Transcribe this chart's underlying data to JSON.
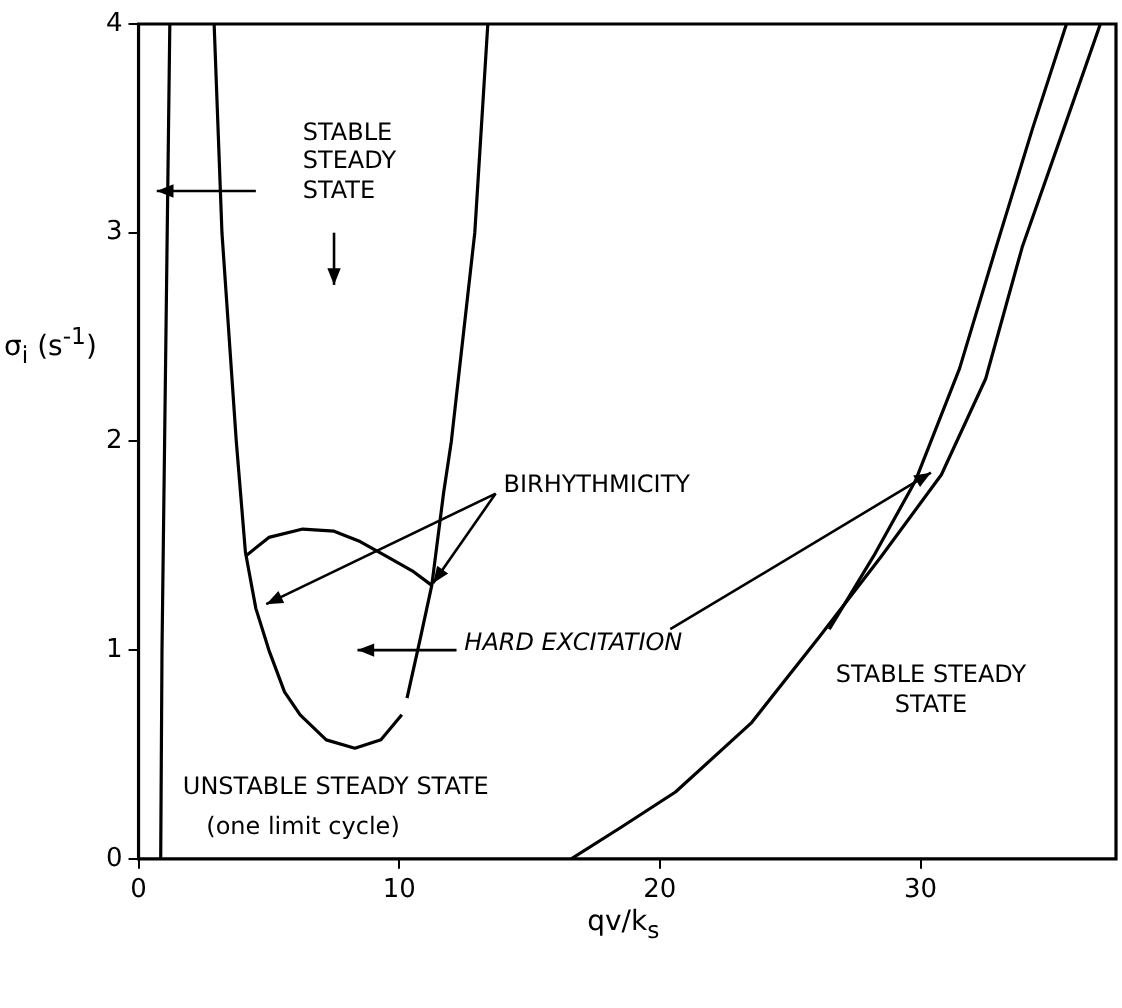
{
  "chart_data": {
    "type": "line",
    "xlabel": "qv/k$_{s}$",
    "ylabel": "σ$_{i}$ (s$^{-1}$)",
    "xlim": [
      0,
      37.5
    ],
    "ylim": [
      0,
      4
    ],
    "xticks": [
      0,
      10,
      20,
      30
    ],
    "yticks": [
      0,
      1,
      2,
      3,
      4
    ],
    "grid": false,
    "legend": false,
    "marker": "none",
    "line_style": "solid",
    "series": [
      {
        "color": "#000000",
        "x": [
          0.85,
          0.9,
          1.0,
          1.1,
          1.2
        ],
        "values": [
          0,
          1,
          2,
          3,
          4
        ]
      },
      {
        "color": "#000000",
        "x": [
          2.9,
          3.2,
          3.75,
          4.1,
          4.5,
          5.0,
          5.6,
          6.2,
          7.2,
          8.3,
          9.3,
          10.1,
          10.2,
          10.3,
          10.8,
          11.25,
          11.7,
          12.0,
          12.9,
          13.4
        ],
        "values": [
          4,
          3,
          2,
          1.47,
          1.2,
          1.0,
          0.8,
          0.69,
          0.57,
          0.53,
          0.57,
          0.69,
          null,
          0.77,
          1.05,
          1.31,
          1.75,
          2,
          3,
          4
        ]
      },
      {
        "color": "#000000",
        "x": [
          4.1,
          5.0,
          6.3,
          7.5,
          8.5,
          9.5,
          10.5,
          11.25
        ],
        "values": [
          1.45,
          1.54,
          1.58,
          1.57,
          1.52,
          1.45,
          1.38,
          1.31
        ]
      },
      {
        "color": "#000000",
        "x": [
          16.6,
          18.5,
          20.6,
          23.5,
          26.1,
          28.5,
          30.8,
          32.5,
          33.9,
          35.5,
          36.9
        ],
        "values": [
          0,
          0.15,
          0.32,
          0.65,
          1.06,
          1.45,
          1.84,
          2.3,
          2.93,
          3.5,
          4
        ]
      },
      {
        "color": "#000000",
        "x": [
          26.5,
          28.2,
          29.8,
          31.5,
          32.9,
          34.3,
          35.6
        ],
        "values": [
          1.1,
          1.45,
          1.81,
          2.35,
          2.93,
          3.5,
          4
        ]
      }
    ],
    "annotations": [
      "STABLE STEADY STATE",
      {
        "text": "BIRHYTHMICITY",
        "x": 11.3,
        "y": 1.32
      },
      "HARD EXCITATION",
      "STABLE STEADY STATE",
      "UNSTABLE STEADY STATE",
      "(one limit cycle)"
    ]
  }
}
